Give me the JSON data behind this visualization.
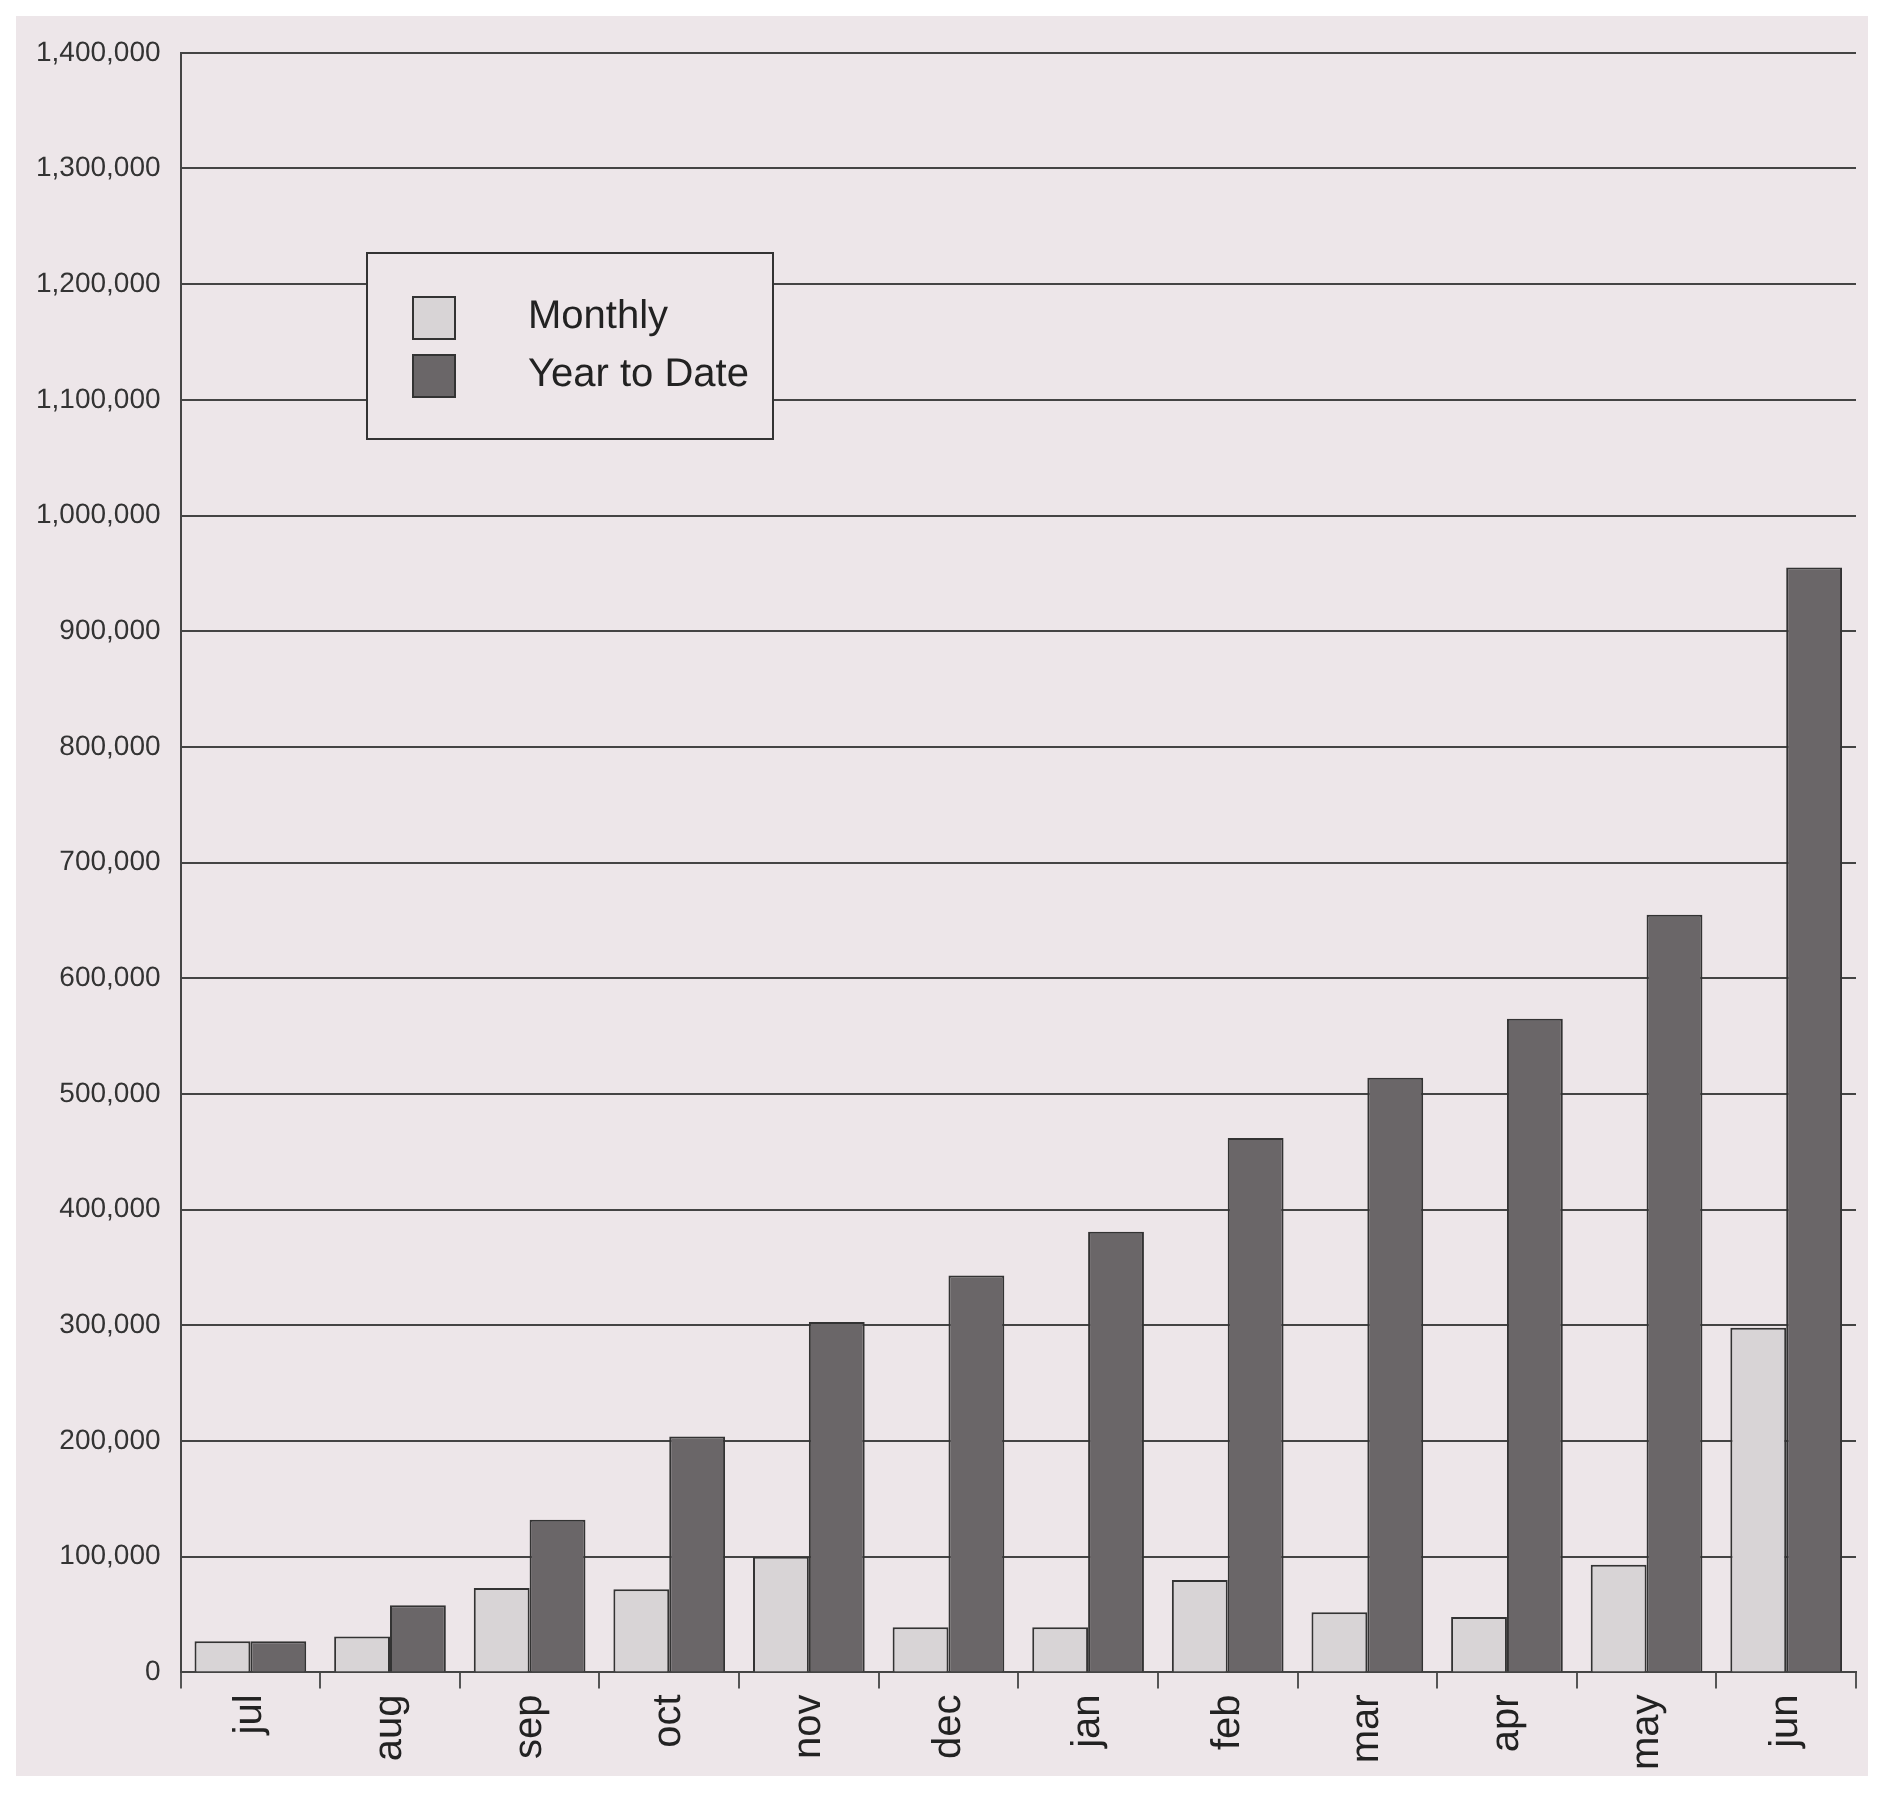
{
  "chart_data": {
    "type": "bar",
    "categories": [
      "jul",
      "aug",
      "sep",
      "oct",
      "nov",
      "dec",
      "jan",
      "feb",
      "mar",
      "apr",
      "may",
      "jun"
    ],
    "series": [
      {
        "name": "Monthly",
        "color": "#d8d4d6",
        "values": [
          27000,
          31000,
          73000,
          72000,
          100000,
          39000,
          39000,
          80000,
          52000,
          48000,
          93000,
          298000
        ]
      },
      {
        "name": "Year to Date",
        "color": "#6a6668",
        "values": [
          27000,
          58000,
          132000,
          204000,
          303000,
          343000,
          381000,
          462000,
          514000,
          565000,
          655000,
          955000
        ]
      }
    ],
    "ylim": [
      0,
      1400000
    ],
    "yticks": [
      {
        "value": 0,
        "label": "0"
      },
      {
        "value": 100000,
        "label": "100,000"
      },
      {
        "value": 200000,
        "label": "200,000"
      },
      {
        "value": 300000,
        "label": "300,000"
      },
      {
        "value": 400000,
        "label": "400,000"
      },
      {
        "value": 500000,
        "label": "500,000"
      },
      {
        "value": 600000,
        "label": "600,000"
      },
      {
        "value": 700000,
        "label": "700,000"
      },
      {
        "value": 800000,
        "label": "800,000"
      },
      {
        "value": 900000,
        "label": "900,000"
      },
      {
        "value": 1000000,
        "label": "1,000,000"
      },
      {
        "value": 1100000,
        "label": "1,100,000"
      },
      {
        "value": 1200000,
        "label": "1,200,000"
      },
      {
        "value": 1300000,
        "label": "1,300,000"
      },
      {
        "value": 1400000,
        "label": "1,400,000"
      }
    ],
    "grid": "y",
    "legend": "top left"
  }
}
